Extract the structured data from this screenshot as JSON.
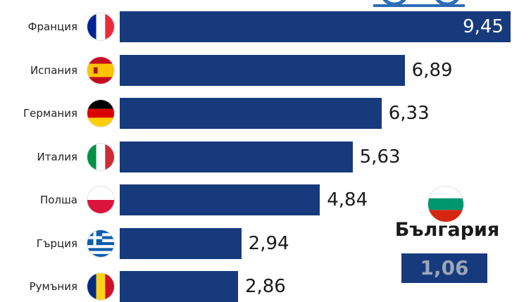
{
  "chart_data": {
    "type": "bar",
    "orientation": "horizontal",
    "categories": [
      "Франция",
      "Испания",
      "Германия",
      "Италия",
      "Полша",
      "Гърция",
      "Румъния"
    ],
    "values": [
      9.45,
      6.89,
      6.33,
      5.63,
      4.84,
      2.94,
      2.86
    ],
    "value_labels": [
      "9,45",
      "6,89",
      "6,33",
      "5,63",
      "4,84",
      "2,94",
      "2,86"
    ],
    "flag_icons": [
      "france-flag-icon",
      "spain-flag-icon",
      "germany-flag-icon",
      "italy-flag-icon",
      "poland-flag-icon",
      "greece-flag-icon",
      "romania-flag-icon"
    ],
    "bar_color": "#173a7c",
    "grid": false
  },
  "highlight": {
    "name": "България",
    "value": 1.06,
    "value_label": "1,06",
    "flag_icon": "bulgaria-flag-icon"
  }
}
